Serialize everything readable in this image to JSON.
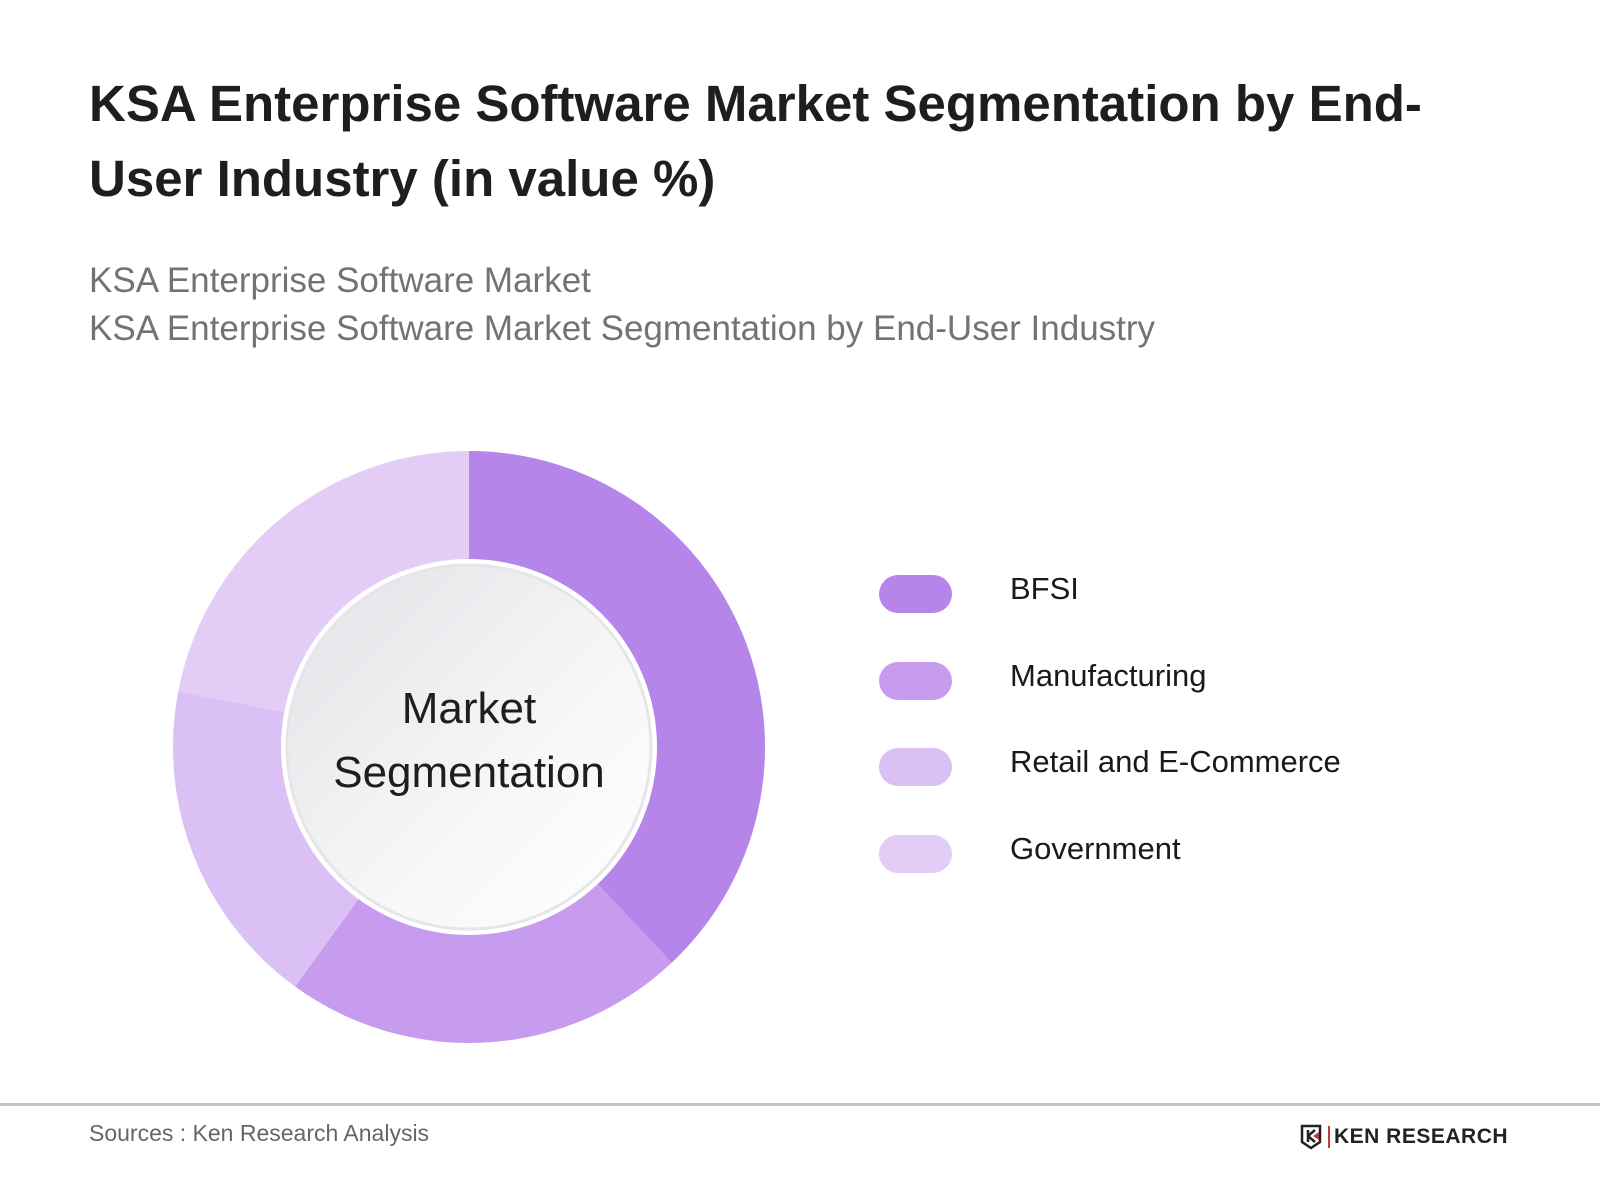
{
  "header": {
    "title": "KSA Enterprise Software Market Segmentation by End-User Industry (in value %)",
    "subtitle_line1": "KSA Enterprise Software Market",
    "subtitle_line2": "KSA Enterprise Software Market Segmentation by End-User Industry"
  },
  "chart_data": {
    "type": "pie",
    "variant": "donut",
    "center_label_line1": "Market",
    "center_label_line2": "Segmentation",
    "categories": [
      "BFSI",
      "Manufacturing",
      "Retail and E-Commerce",
      "Government"
    ],
    "values": [
      38,
      22,
      18,
      22
    ],
    "colors": [
      "#b585ea",
      "#c79cee",
      "#dbc0f5",
      "#e3cdf7"
    ],
    "legend_position": "right",
    "start_angle": "top, clockwise"
  },
  "footer": {
    "source": "Sources : Ken Research Analysis",
    "logo_text": "KEN RESEARCH"
  }
}
